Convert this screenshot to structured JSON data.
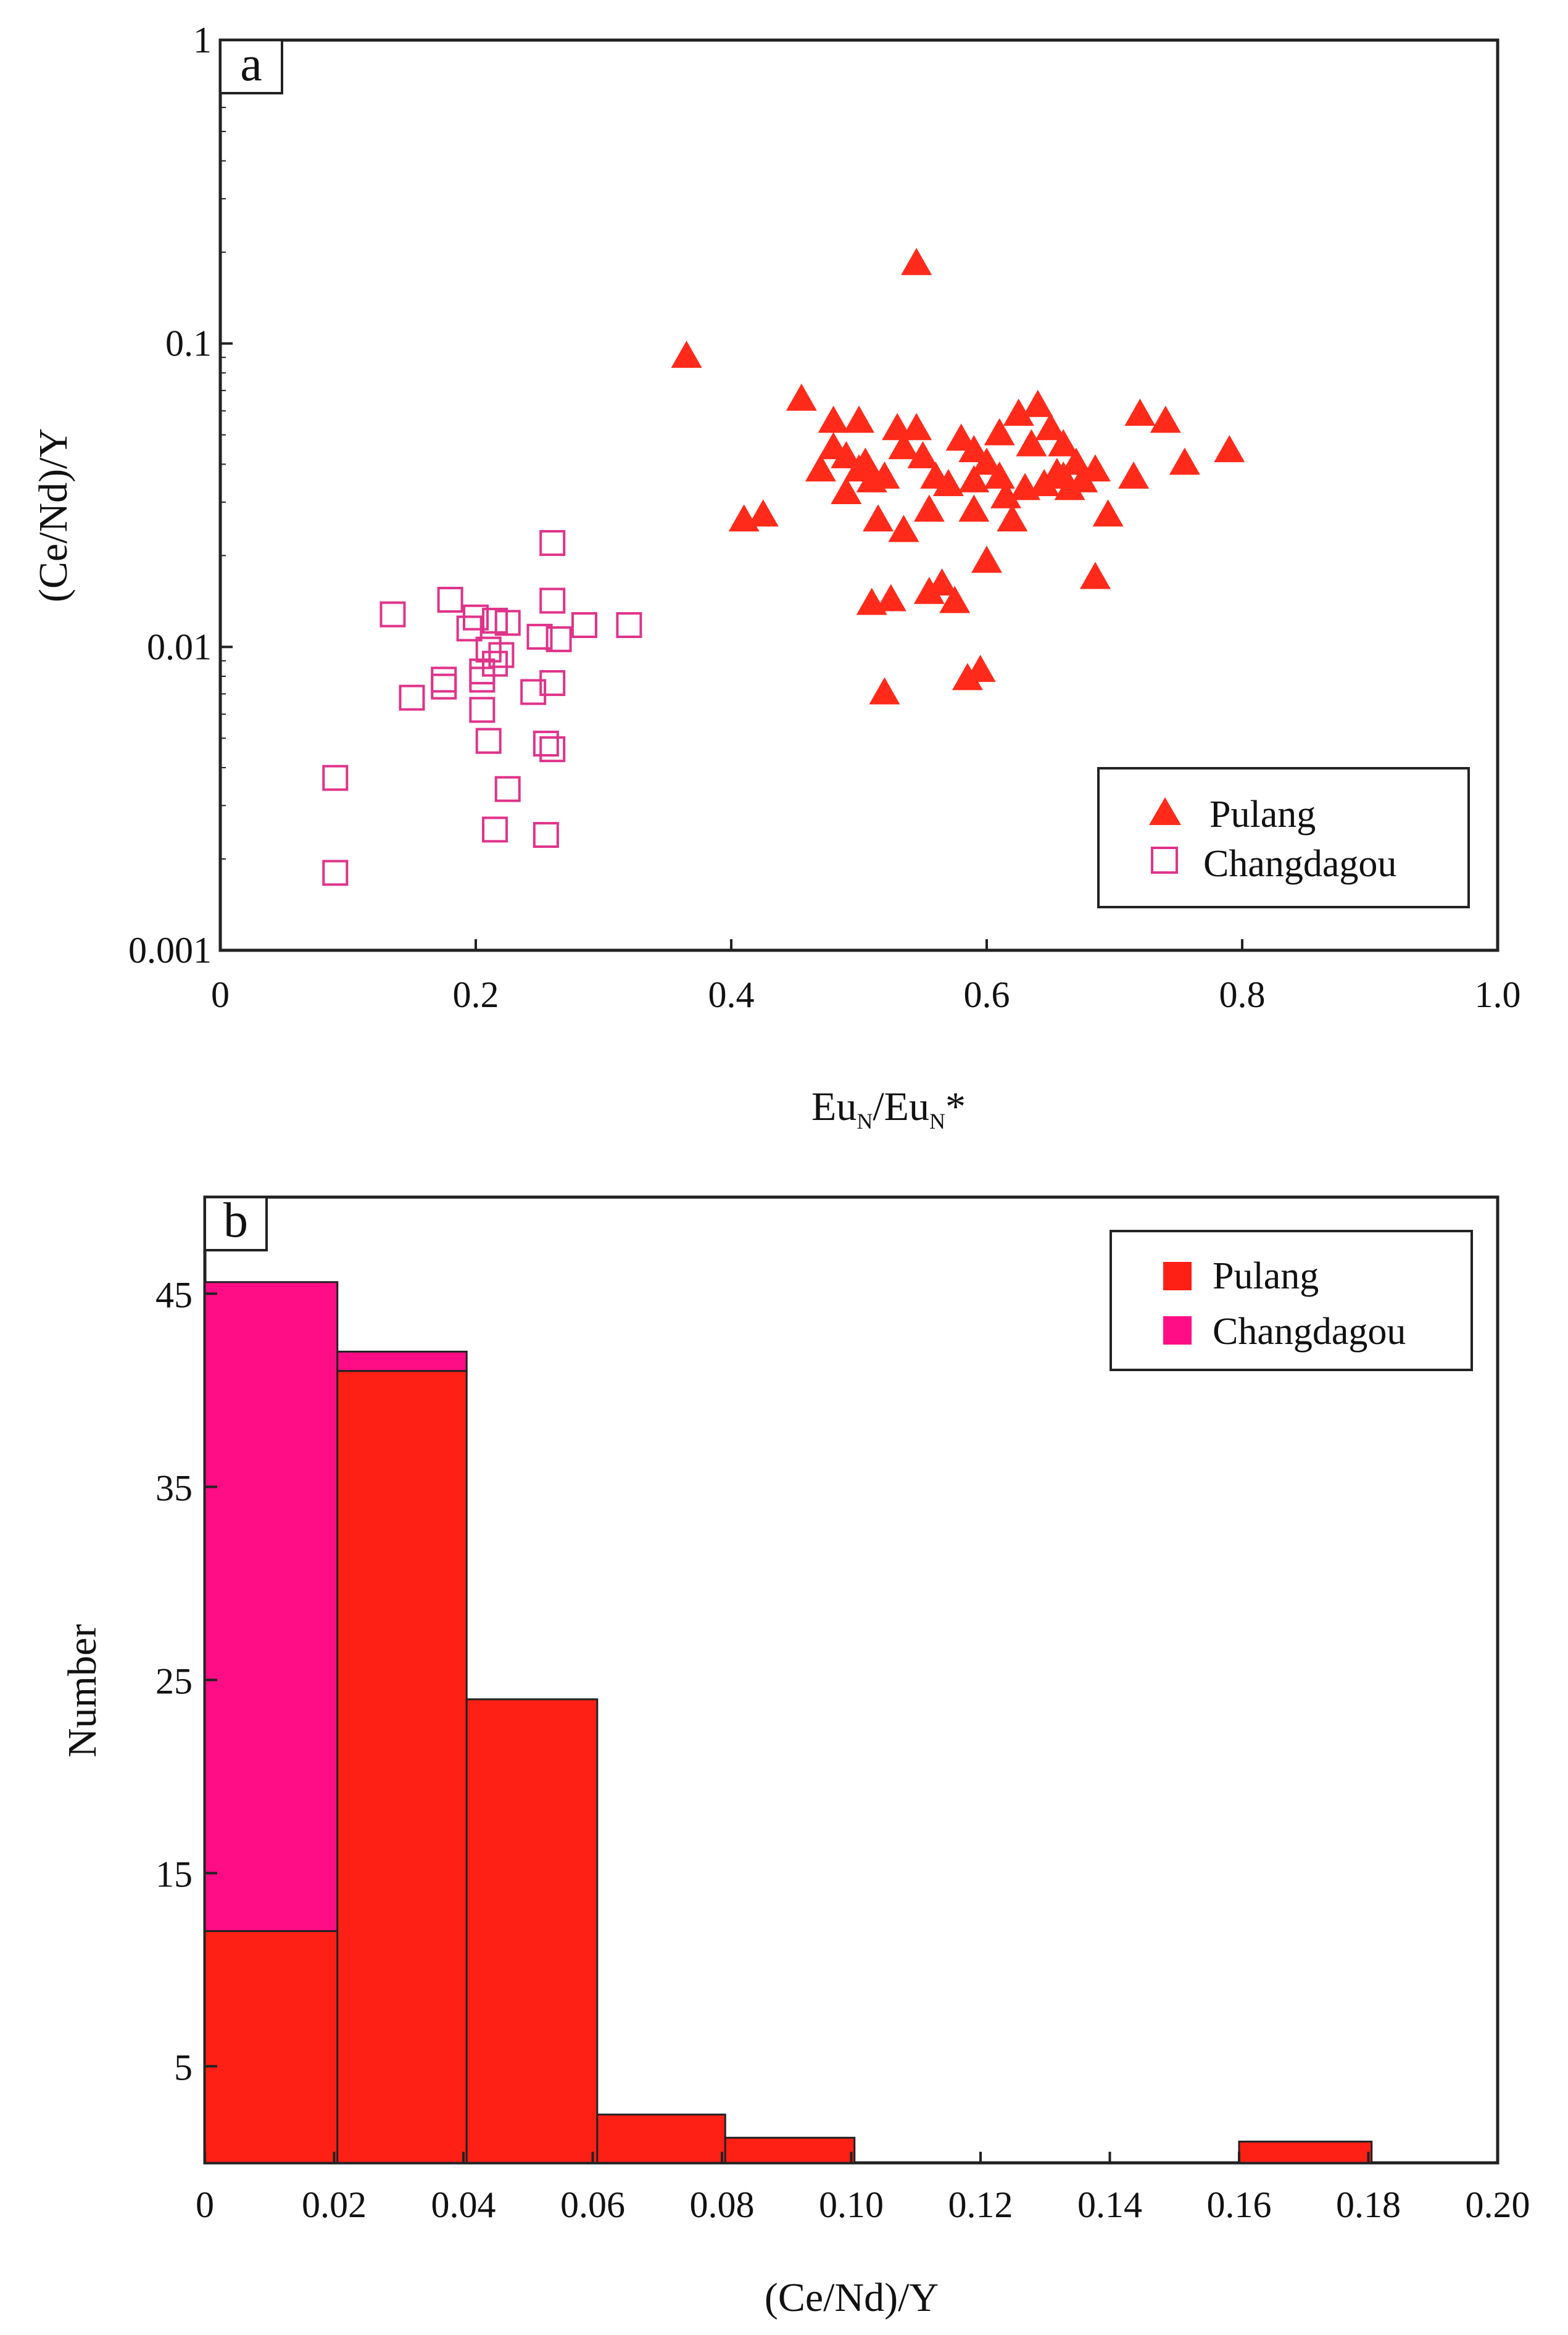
{
  "chart_data": [
    {
      "type": "scatter",
      "panel_label": "a",
      "xlabel": {
        "main": "Eu",
        "sub": "N",
        "sep": "/",
        "main2": "Eu",
        "sub2": "N",
        "suffix": "*"
      },
      "ylabel": "(Ce/Nd)/Y",
      "xlim": [
        0,
        1.0
      ],
      "ylim": [
        0.001,
        1
      ],
      "yscale": "log",
      "x_ticks": [
        "0",
        "0.2",
        "0.4",
        "0.6",
        "0.8",
        "1.0"
      ],
      "y_ticks": [
        "0.001",
        "0.01",
        "0.1",
        "1"
      ],
      "legend_position": "bottom-right",
      "series": [
        {
          "name": "Pulang",
          "marker": "filled-triangle",
          "color": "#ff2a1a",
          "points": [
            [
              0.545,
              0.182
            ],
            [
              0.365,
              0.09
            ],
            [
              0.455,
              0.065
            ],
            [
              0.48,
              0.055
            ],
            [
              0.5,
              0.055
            ],
            [
              0.53,
              0.052
            ],
            [
              0.545,
              0.052
            ],
            [
              0.58,
              0.048
            ],
            [
              0.59,
              0.044
            ],
            [
              0.61,
              0.05
            ],
            [
              0.625,
              0.058
            ],
            [
              0.64,
              0.062
            ],
            [
              0.65,
              0.052
            ],
            [
              0.66,
              0.046
            ],
            [
              0.635,
              0.046
            ],
            [
              0.67,
              0.04
            ],
            [
              0.685,
              0.038
            ],
            [
              0.72,
              0.058
            ],
            [
              0.74,
              0.055
            ],
            [
              0.755,
              0.04
            ],
            [
              0.79,
              0.044
            ],
            [
              0.715,
              0.036
            ],
            [
              0.48,
              0.045
            ],
            [
              0.49,
              0.042
            ],
            [
              0.47,
              0.038
            ],
            [
              0.5,
              0.038
            ],
            [
              0.51,
              0.035
            ],
            [
              0.52,
              0.036
            ],
            [
              0.535,
              0.045
            ],
            [
              0.55,
              0.042
            ],
            [
              0.56,
              0.036
            ],
            [
              0.57,
              0.034
            ],
            [
              0.59,
              0.035
            ],
            [
              0.6,
              0.04
            ],
            [
              0.61,
              0.036
            ],
            [
              0.615,
              0.031
            ],
            [
              0.63,
              0.033
            ],
            [
              0.645,
              0.034
            ],
            [
              0.655,
              0.037
            ],
            [
              0.665,
              0.033
            ],
            [
              0.675,
              0.035
            ],
            [
              0.59,
              0.028
            ],
            [
              0.62,
              0.026
            ],
            [
              0.66,
              0.036
            ],
            [
              0.49,
              0.032
            ],
            [
              0.505,
              0.04
            ],
            [
              0.41,
              0.026
            ],
            [
              0.425,
              0.027
            ],
            [
              0.515,
              0.026
            ],
            [
              0.535,
              0.024
            ],
            [
              0.555,
              0.028
            ],
            [
              0.6,
              0.019
            ],
            [
              0.565,
              0.016
            ],
            [
              0.575,
              0.014
            ],
            [
              0.555,
              0.015
            ],
            [
              0.51,
              0.0138
            ],
            [
              0.525,
              0.0142
            ],
            [
              0.685,
              0.0168
            ],
            [
              0.695,
              0.027
            ],
            [
              0.595,
              0.0083
            ],
            [
              0.585,
              0.0078
            ],
            [
              0.52,
              0.007
            ]
          ]
        },
        {
          "name": "Changdagou",
          "marker": "open-square",
          "color": "#e0338a",
          "points": [
            [
              0.26,
              0.022
            ],
            [
              0.135,
              0.0128
            ],
            [
              0.18,
              0.0143
            ],
            [
              0.195,
              0.0115
            ],
            [
              0.2,
              0.0125
            ],
            [
              0.215,
              0.0122
            ],
            [
              0.225,
              0.012
            ],
            [
              0.26,
              0.0142
            ],
            [
              0.285,
              0.0118
            ],
            [
              0.32,
              0.0118
            ],
            [
              0.25,
              0.0108
            ],
            [
              0.265,
              0.0106
            ],
            [
              0.21,
              0.0098
            ],
            [
              0.22,
              0.0094
            ],
            [
              0.215,
              0.0088
            ],
            [
              0.205,
              0.0083
            ],
            [
              0.175,
              0.0078
            ],
            [
              0.175,
              0.0074
            ],
            [
              0.205,
              0.0078
            ],
            [
              0.15,
              0.0068
            ],
            [
              0.245,
              0.0071
            ],
            [
              0.26,
              0.0076
            ],
            [
              0.205,
              0.0062
            ],
            [
              0.21,
              0.0049
            ],
            [
              0.255,
              0.0048
            ],
            [
              0.26,
              0.0046
            ],
            [
              0.09,
              0.0037
            ],
            [
              0.225,
              0.0034
            ],
            [
              0.215,
              0.0025
            ],
            [
              0.255,
              0.0024
            ],
            [
              0.09,
              0.0018
            ]
          ]
        }
      ]
    },
    {
      "type": "bar",
      "panel_label": "b",
      "xlabel": "(Ce/Nd)/Y",
      "ylabel": "Number",
      "xlim": [
        0,
        0.2
      ],
      "ylim": [
        0,
        50
      ],
      "x_ticks": [
        "0",
        "0.02",
        "0.04",
        "0.06",
        "0.08",
        "0.10",
        "0.12",
        "0.14",
        "0.16",
        "0.18",
        "0.20"
      ],
      "y_ticks": [
        "5",
        "15",
        "25",
        "35",
        "45"
      ],
      "legend_position": "top-right",
      "stacked": true,
      "bins": [
        [
          0,
          0.0205
        ],
        [
          0.0205,
          0.0405
        ],
        [
          0.0405,
          0.0607
        ],
        [
          0.0607,
          0.0805
        ],
        [
          0.0805,
          0.1005
        ],
        [
          0.1005,
          0.12
        ],
        [
          0.12,
          0.14
        ],
        [
          0.14,
          0.16
        ],
        [
          0.16,
          0.1805
        ]
      ],
      "series": [
        {
          "name": "Pulang",
          "color": "#ff2015",
          "values": [
            12,
            41,
            24,
            2.5,
            1.3,
            0,
            0,
            0,
            1.1
          ]
        },
        {
          "name": "Changdagou",
          "color": "#ff0d86",
          "values": [
            33.6,
            1.0,
            0,
            0,
            0,
            0,
            0,
            0,
            0
          ]
        }
      ]
    }
  ]
}
